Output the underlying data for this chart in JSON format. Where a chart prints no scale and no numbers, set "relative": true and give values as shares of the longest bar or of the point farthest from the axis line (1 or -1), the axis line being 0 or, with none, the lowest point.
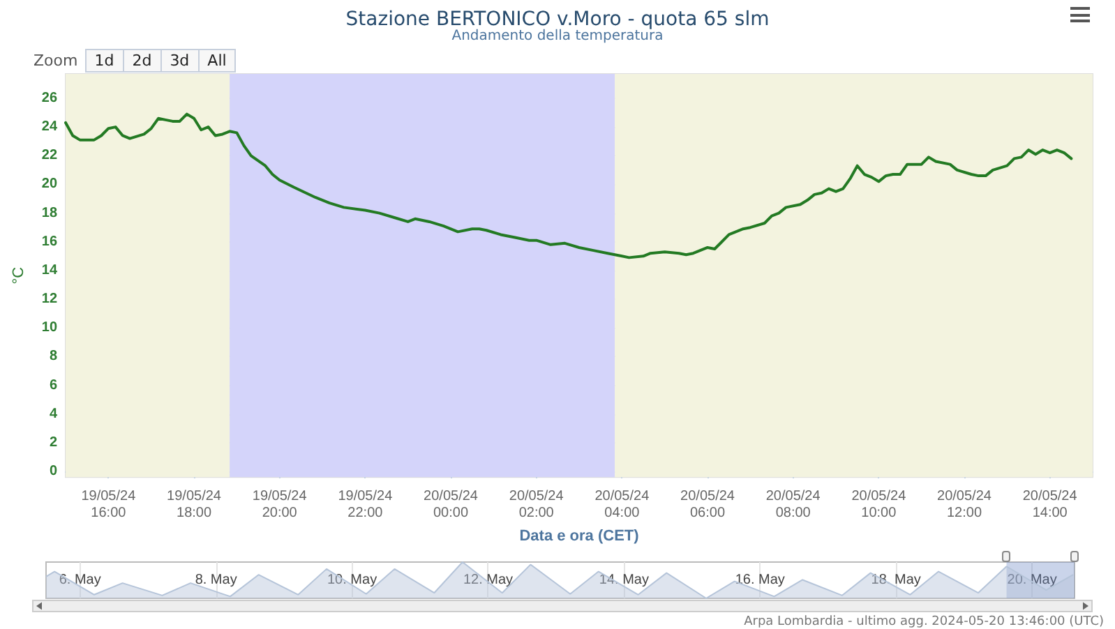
{
  "chart_data": [
    {
      "type": "line",
      "title": "Stazione BERTONICO v.Moro - quota 65 slm",
      "subtitle": "Andamento della temperatura",
      "xlabel": "Data e ora (CET)",
      "ylabel": "°C",
      "x": [
        "2024-05-19T15:00",
        "2024-05-19T15:10",
        "2024-05-19T15:20",
        "2024-05-19T15:40",
        "2024-05-19T15:50",
        "2024-05-19T16:00",
        "2024-05-19T16:10",
        "2024-05-19T16:20",
        "2024-05-19T16:30",
        "2024-05-19T16:50",
        "2024-05-19T17:00",
        "2024-05-19T17:10",
        "2024-05-19T17:20",
        "2024-05-19T17:30",
        "2024-05-19T17:40",
        "2024-05-19T17:50",
        "2024-05-19T18:00",
        "2024-05-19T18:10",
        "2024-05-19T18:20",
        "2024-05-19T18:30",
        "2024-05-19T18:40",
        "2024-05-19T18:50",
        "2024-05-19T19:00",
        "2024-05-19T19:10",
        "2024-05-19T19:20",
        "2024-05-19T19:40",
        "2024-05-19T19:50",
        "2024-05-19T20:00",
        "2024-05-19T20:20",
        "2024-05-19T20:50",
        "2024-05-19T21:10",
        "2024-05-19T21:30",
        "2024-05-19T22:00",
        "2024-05-19T22:20",
        "2024-05-19T22:40",
        "2024-05-19T23:00",
        "2024-05-19T23:10",
        "2024-05-19T23:30",
        "2024-05-19T23:50",
        "2024-05-20T00:10",
        "2024-05-20T00:30",
        "2024-05-20T00:40",
        "2024-05-20T00:50",
        "2024-05-20T01:10",
        "2024-05-20T01:30",
        "2024-05-20T01:50",
        "2024-05-20T02:00",
        "2024-05-20T02:20",
        "2024-05-20T02:40",
        "2024-05-20T03:00",
        "2024-05-20T03:20",
        "2024-05-20T03:40",
        "2024-05-20T04:00",
        "2024-05-20T04:10",
        "2024-05-20T04:30",
        "2024-05-20T04:40",
        "2024-05-20T05:00",
        "2024-05-20T05:20",
        "2024-05-20T05:30",
        "2024-05-20T05:40",
        "2024-05-20T06:00",
        "2024-05-20T06:10",
        "2024-05-20T06:20",
        "2024-05-20T06:30",
        "2024-05-20T06:50",
        "2024-05-20T07:00",
        "2024-05-20T07:20",
        "2024-05-20T07:30",
        "2024-05-20T07:40",
        "2024-05-20T07:50",
        "2024-05-20T08:10",
        "2024-05-20T08:20",
        "2024-05-20T08:30",
        "2024-05-20T08:40",
        "2024-05-20T08:50",
        "2024-05-20T09:00",
        "2024-05-20T09:10",
        "2024-05-20T09:20",
        "2024-05-20T09:30",
        "2024-05-20T09:40",
        "2024-05-20T09:50",
        "2024-05-20T10:00",
        "2024-05-20T10:10",
        "2024-05-20T10:20",
        "2024-05-20T10:30",
        "2024-05-20T10:40",
        "2024-05-20T11:00",
        "2024-05-20T11:10",
        "2024-05-20T11:20",
        "2024-05-20T11:40",
        "2024-05-20T11:50",
        "2024-05-20T12:10",
        "2024-05-20T12:20",
        "2024-05-20T12:30",
        "2024-05-20T12:40",
        "2024-05-20T13:00",
        "2024-05-20T13:10",
        "2024-05-20T13:20",
        "2024-05-20T13:30",
        "2024-05-20T13:40",
        "2024-05-20T13:50",
        "2024-05-20T14:00",
        "2024-05-20T14:10",
        "2024-05-20T14:20",
        "2024-05-20T14:30"
      ],
      "values": [
        24.3,
        23.4,
        23.1,
        23.1,
        23.4,
        23.9,
        24.0,
        23.4,
        23.2,
        23.5,
        23.9,
        24.6,
        24.5,
        24.4,
        24.4,
        24.9,
        24.6,
        23.8,
        24.0,
        23.4,
        23.5,
        23.7,
        23.6,
        22.7,
        22.0,
        21.3,
        20.7,
        20.3,
        19.8,
        19.1,
        18.7,
        18.4,
        18.2,
        18.0,
        17.7,
        17.4,
        17.6,
        17.4,
        17.1,
        16.7,
        16.9,
        16.9,
        16.8,
        16.5,
        16.3,
        16.1,
        16.1,
        15.8,
        15.9,
        15.6,
        15.4,
        15.2,
        15.0,
        14.9,
        15.0,
        15.2,
        15.3,
        15.2,
        15.1,
        15.2,
        15.6,
        15.5,
        16.0,
        16.5,
        16.9,
        17.0,
        17.3,
        17.8,
        18.0,
        18.4,
        18.6,
        18.9,
        19.3,
        19.4,
        19.7,
        19.5,
        19.7,
        20.4,
        21.3,
        20.7,
        20.5,
        20.2,
        20.6,
        20.7,
        20.7,
        21.4,
        21.4,
        21.9,
        21.6,
        21.4,
        21.0,
        20.7,
        20.6,
        20.6,
        21.0,
        21.3,
        21.8,
        21.9,
        22.4,
        22.1,
        22.4,
        22.2,
        22.4,
        22.2,
        21.8
      ],
      "color": "#237a23",
      "marker": "none",
      "xlim": [
        "2024-05-19T15:00",
        "2024-05-20T15:00"
      ],
      "xticks": [
        {
          "value": "2024-05-19T16:00",
          "label": "19/05/24\n16:00"
        },
        {
          "value": "2024-05-19T18:00",
          "label": "19/05/24\n18:00"
        },
        {
          "value": "2024-05-19T20:00",
          "label": "19/05/24\n20:00"
        },
        {
          "value": "2024-05-19T22:00",
          "label": "19/05/24\n22:00"
        },
        {
          "value": "2024-05-20T00:00",
          "label": "20/05/24\n00:00"
        },
        {
          "value": "2024-05-20T02:00",
          "label": "20/05/24\n02:00"
        },
        {
          "value": "2024-05-20T04:00",
          "label": "20/05/24\n04:00"
        },
        {
          "value": "2024-05-20T06:00",
          "label": "20/05/24\n06:00"
        },
        {
          "value": "2024-05-20T08:00",
          "label": "20/05/24\n08:00"
        },
        {
          "value": "2024-05-20T10:00",
          "label": "20/05/24\n10:00"
        },
        {
          "value": "2024-05-20T12:00",
          "label": "20/05/24\n12:00"
        },
        {
          "value": "2024-05-20T14:00",
          "label": "20/05/24\n14:00"
        }
      ],
      "ylim": [
        -0.4,
        27.7
      ],
      "yticks": [
        0,
        2,
        4,
        6,
        8,
        10,
        12,
        14,
        16,
        18,
        20,
        22,
        24,
        26
      ],
      "grid": true,
      "bands": [
        {
          "axis": "x",
          "from": "2024-05-19T15:00",
          "to": "2024-05-19T18:50",
          "color": "#f3f3df"
        },
        {
          "axis": "x",
          "from": "2024-05-19T18:50",
          "to": "2024-05-20T03:50",
          "color": "#d4d4fa"
        },
        {
          "axis": "x",
          "from": "2024-05-20T03:50",
          "to": "2024-05-20T15:00",
          "color": "#f3f3df"
        }
      ],
      "annotations": [
        "Zoom",
        "1d",
        "2d",
        "3d",
        "All",
        "Arpa Lombardia - ultimo agg. 2024-05-20 13:46:00 (UTC)"
      ]
    },
    {
      "type": "area",
      "relative": true,
      "color": "#b5c4d9",
      "x": [
        "2024-05-05T12:00",
        "2024-05-05T15:00",
        "2024-05-06T05:00",
        "2024-05-06T15:00",
        "2024-05-07T05:00",
        "2024-05-07T15:00",
        "2024-05-08T05:00",
        "2024-05-08T15:00",
        "2024-05-09T05:00",
        "2024-05-09T15:00",
        "2024-05-10T05:00",
        "2024-05-10T15:00",
        "2024-05-11T05:00",
        "2024-05-11T15:00",
        "2024-05-12T05:00",
        "2024-05-12T15:00",
        "2024-05-13T05:00",
        "2024-05-13T15:00",
        "2024-05-14T05:00",
        "2024-05-14T15:00",
        "2024-05-15T05:00",
        "2024-05-15T15:00",
        "2024-05-16T05:00",
        "2024-05-16T15:00",
        "2024-05-17T05:00",
        "2024-05-17T15:00",
        "2024-05-18T05:00",
        "2024-05-18T15:00",
        "2024-05-19T05:00",
        "2024-05-19T15:00",
        "2024-05-20T05:00",
        "2024-05-20T14:30"
      ],
      "values": [
        0.6,
        0.74,
        0.1,
        0.42,
        0.08,
        0.42,
        0.05,
        0.65,
        0.1,
        0.81,
        0.12,
        0.81,
        0.15,
        1,
        0.15,
        0.93,
        0.12,
        0.74,
        0.1,
        0.7,
        0,
        0.47,
        0.05,
        0.51,
        0.08,
        0.7,
        0.1,
        0.74,
        0.15,
        0.88,
        0.23,
        0.65
      ],
      "xlim": [
        "2024-05-05T12:00",
        "2024-05-20T15:00"
      ],
      "xticks": [
        {
          "value": "2024-05-06",
          "label": "6. May"
        },
        {
          "value": "2024-05-08",
          "label": "8. May"
        },
        {
          "value": "2024-05-10",
          "label": "10. May"
        },
        {
          "value": "2024-05-12",
          "label": "12. May"
        },
        {
          "value": "2024-05-14",
          "label": "14. May"
        },
        {
          "value": "2024-05-16",
          "label": "16. May"
        },
        {
          "value": "2024-05-18",
          "label": "18. May"
        },
        {
          "value": "2024-05-20",
          "label": "20. May"
        }
      ],
      "grid": "x",
      "bands": [
        {
          "axis": "x",
          "from": "2024-05-19T15:00",
          "to": "2024-05-20T15:00",
          "color": "#6685c2"
        }
      ]
    }
  ]
}
